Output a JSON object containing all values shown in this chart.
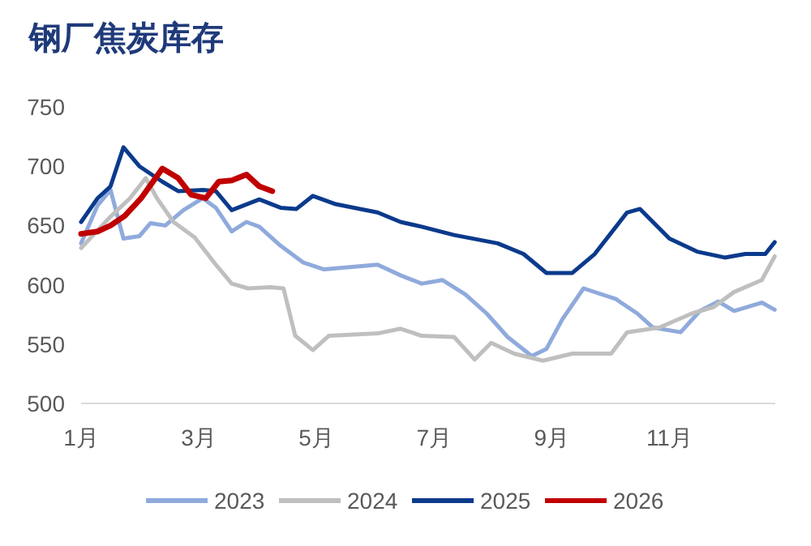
{
  "chart_data": {
    "type": "line",
    "title": "钢厂焦炭库存",
    "xlim": [
      1,
      12.8
    ],
    "ylim": [
      500,
      750
    ],
    "xticks": [
      {
        "value": 1,
        "label": "1月"
      },
      {
        "value": 3,
        "label": "3月"
      },
      {
        "value": 5,
        "label": "5月"
      },
      {
        "value": 7,
        "label": "7月"
      },
      {
        "value": 9,
        "label": "9月"
      },
      {
        "value": 11,
        "label": "11月"
      }
    ],
    "yticks": [
      500,
      550,
      600,
      650,
      700,
      750
    ],
    "legend": "bottom",
    "series": [
      {
        "name": "2023",
        "color": "#8faadc",
        "x": [
          1.0,
          1.28,
          1.5,
          1.72,
          1.99,
          2.18,
          2.43,
          2.74,
          3.07,
          3.29,
          3.56,
          3.81,
          4.03,
          4.39,
          4.77,
          5.13,
          6.04,
          6.43,
          6.79,
          7.14,
          7.53,
          7.89,
          8.25,
          8.66,
          8.91,
          9.18,
          9.54,
          10.09,
          10.45,
          10.72,
          11.19,
          11.52,
          11.83,
          12.1,
          12.57,
          12.79
        ],
        "values": [
          635,
          667,
          680,
          639,
          641,
          652,
          650,
          663,
          673,
          665,
          645,
          653,
          649,
          633,
          619,
          613,
          617,
          608,
          601,
          604,
          592,
          576,
          556,
          540,
          546,
          571,
          597,
          588,
          576,
          564,
          560,
          578,
          586,
          578,
          585,
          579
        ]
      },
      {
        "name": "2024",
        "color": "#bfbfbf",
        "x": [
          1.0,
          1.47,
          1.83,
          2.1,
          2.29,
          2.57,
          2.93,
          3.29,
          3.56,
          3.84,
          4.22,
          4.44,
          4.64,
          4.94,
          5.21,
          6.04,
          6.43,
          6.79,
          7.34,
          7.69,
          7.97,
          8.36,
          8.85,
          9.35,
          10.01,
          10.28,
          10.83,
          11.39,
          11.74,
          12.1,
          12.57,
          12.79
        ],
        "values": [
          631,
          656,
          673,
          690,
          673,
          653,
          640,
          617,
          601,
          597,
          598,
          597,
          557,
          545,
          557,
          559,
          563,
          557,
          556,
          537,
          551,
          542,
          536,
          542,
          542,
          560,
          564,
          576,
          581,
          594,
          604,
          624
        ]
      },
      {
        "name": "2025",
        "color": "#0b3a8c",
        "x": [
          1.0,
          1.28,
          1.5,
          1.72,
          1.99,
          2.38,
          2.65,
          3.07,
          3.29,
          3.56,
          4.03,
          4.39,
          4.66,
          4.94,
          5.33,
          6.04,
          6.43,
          6.79,
          7.34,
          8.08,
          8.52,
          8.91,
          9.35,
          9.73,
          10.28,
          10.5,
          11.0,
          11.47,
          11.94,
          12.29,
          12.63,
          12.79
        ],
        "values": [
          653,
          673,
          683,
          716,
          700,
          687,
          679,
          680,
          679,
          663,
          672,
          665,
          664,
          675,
          668,
          661,
          653,
          649,
          642,
          635,
          626,
          610,
          610,
          626,
          661,
          664,
          639,
          628,
          623,
          626,
          626,
          636
        ]
      },
      {
        "name": "2026",
        "color": "#c00000",
        "x": [
          1.0,
          1.28,
          1.5,
          1.74,
          2.02,
          2.38,
          2.65,
          2.87,
          3.12,
          3.34,
          3.56,
          3.81,
          4.03,
          4.25
        ],
        "values": [
          643,
          645,
          650,
          658,
          673,
          698,
          690,
          676,
          673,
          687,
          688,
          693,
          683,
          679
        ]
      }
    ]
  }
}
